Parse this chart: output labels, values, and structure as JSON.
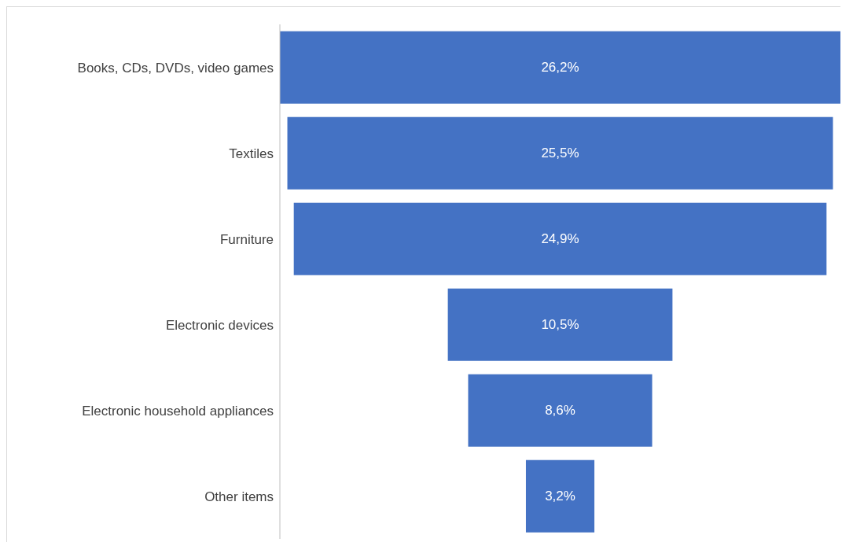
{
  "chart_data": {
    "type": "other",
    "categories": [
      "Books, CDs, DVDs, video games",
      "Textiles",
      "Furniture",
      "Electronic devices",
      "Electronic household appliances",
      "Other items"
    ],
    "values": [
      26.2,
      25.5,
      24.9,
      10.5,
      8.6,
      3.2
    ],
    "value_labels": [
      "26,2%",
      "25,5%",
      "24,9%",
      "10,5%",
      "8,6%",
      "3,2%"
    ],
    "color": "#4472c4"
  }
}
